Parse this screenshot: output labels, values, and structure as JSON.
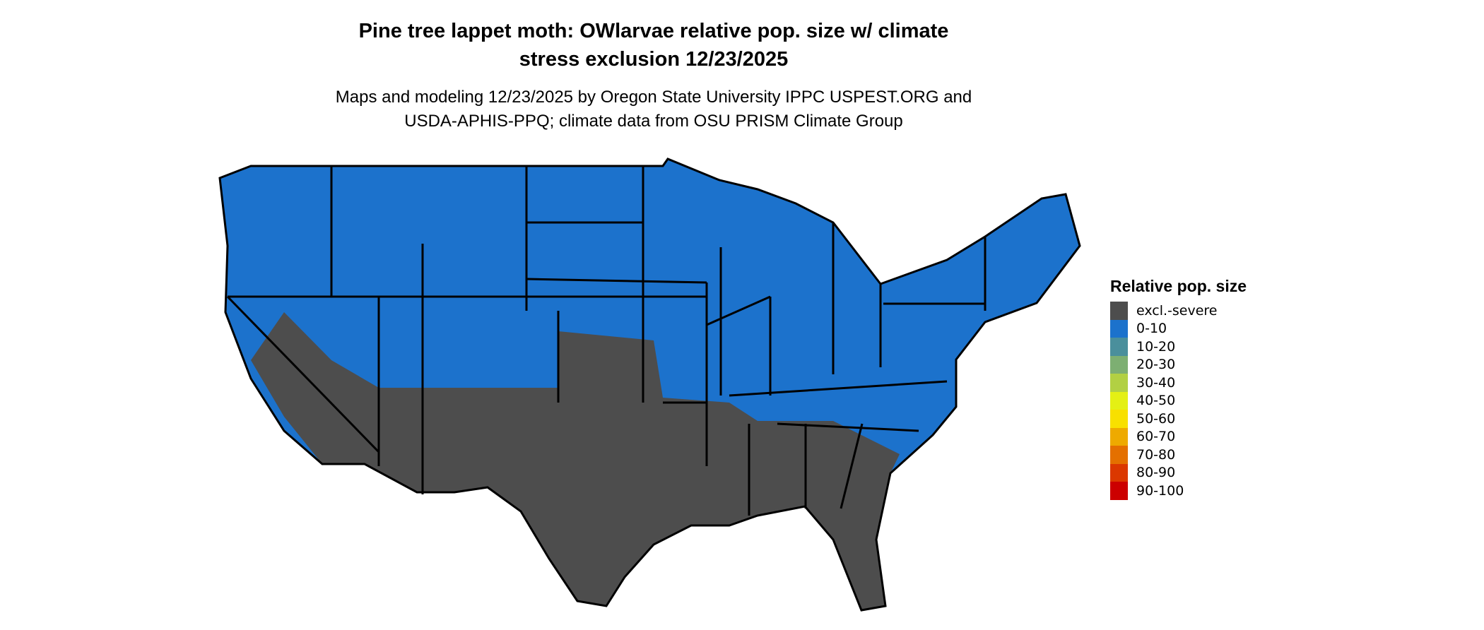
{
  "title_line1": "Pine tree lappet moth: OWlarvae relative pop. size w/ climate",
  "title_line2": "stress exclusion 12/23/2025",
  "subtitle_line1": "Maps and modeling 12/23/2025 by Oregon State University IPPC USPEST.ORG and",
  "subtitle_line2": "USDA-APHIS-PPQ; climate data from OSU PRISM Climate Group",
  "legend": {
    "title": "Relative pop. size",
    "items": [
      {
        "label": "excl.-severe",
        "color": "#4d4d4d"
      },
      {
        "label": "0-10",
        "color": "#1c72cc"
      },
      {
        "label": "10-20",
        "color": "#4a8f9c"
      },
      {
        "label": "20-30",
        "color": "#7daf72"
      },
      {
        "label": "30-40",
        "color": "#b2d043"
      },
      {
        "label": "40-50",
        "color": "#e4f014"
      },
      {
        "label": "50-60",
        "color": "#f8e000"
      },
      {
        "label": "60-70",
        "color": "#eeaa00"
      },
      {
        "label": "70-80",
        "color": "#e47000"
      },
      {
        "label": "80-90",
        "color": "#db3800"
      },
      {
        "label": "90-100",
        "color": "#cc0000"
      }
    ]
  },
  "map": {
    "region": "Contiguous United States",
    "dominant_north": "0-10",
    "dominant_south": "excl.-severe"
  }
}
